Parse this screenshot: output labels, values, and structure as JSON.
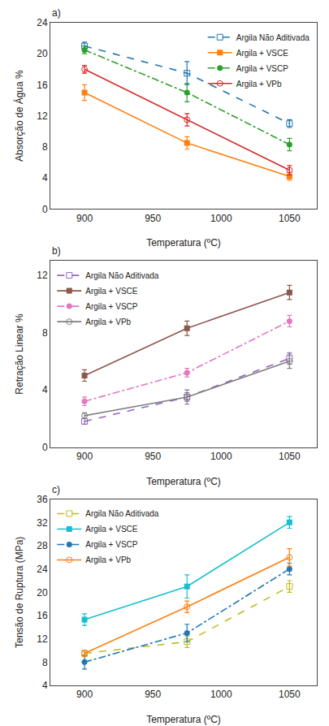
{
  "chart_data": [
    {
      "type": "line",
      "title": "a)",
      "xlabel": "Temperatura (ºC)",
      "ylabel": "Absorção de Água %",
      "x": [
        900,
        975,
        1050
      ],
      "xlim": [
        875,
        1070
      ],
      "xticks": [
        900,
        950,
        1000,
        1050
      ],
      "ylim": [
        0,
        24
      ],
      "yticks": [
        0,
        4,
        8,
        12,
        16,
        20,
        24
      ],
      "grid": false,
      "legend": "upper right",
      "series": [
        {
          "name": "Argila Não Aditivada",
          "values": [
            21.0,
            17.5,
            11.0
          ],
          "yerr": [
            0.5,
            1.5,
            0.5
          ],
          "marker": "square-open",
          "line_style": "dashed"
        },
        {
          "name": "Argila + VSCE",
          "values": [
            15.0,
            8.5,
            4.2
          ],
          "yerr": [
            1.0,
            0.8,
            0.5
          ],
          "marker": "square",
          "line_style": "solid"
        },
        {
          "name": "Argila + VSCP",
          "values": [
            20.5,
            15.0,
            8.3
          ],
          "yerr": [
            0.5,
            1.2,
            0.8
          ],
          "marker": "circle",
          "line_style": "dotted_dash"
        },
        {
          "name": "Argila + VPb",
          "values": [
            18.0,
            11.5,
            5.0
          ],
          "yerr": [
            0.5,
            0.8,
            0.6
          ],
          "marker": "circle-open",
          "line_style": "solid"
        }
      ]
    },
    {
      "type": "line",
      "title": "b)",
      "xlabel": "Temperatura (ºC)",
      "ylabel": "Retração Linear %",
      "x": [
        900,
        975,
        1050
      ],
      "xlim": [
        875,
        1070
      ],
      "xticks": [
        900,
        950,
        1000,
        1050
      ],
      "ylim": [
        0,
        13
      ],
      "yticks": [
        0,
        4,
        8,
        12
      ],
      "grid": false,
      "legend": "upper left",
      "series": [
        {
          "name": "Argila Não Aditivada",
          "values": [
            1.8,
            3.5,
            6.2
          ],
          "yerr": [
            0.2,
            0.3,
            0.4
          ],
          "marker": "square-open",
          "line_style": "dashed"
        },
        {
          "name": "Argila + VSCE",
          "values": [
            5.0,
            8.3,
            10.8
          ],
          "yerr": [
            0.4,
            0.5,
            0.5
          ],
          "marker": "square",
          "line_style": "solid"
        },
        {
          "name": "Argila + VSCP",
          "values": [
            3.2,
            5.2,
            8.8
          ],
          "yerr": [
            0.3,
            0.3,
            0.4
          ],
          "marker": "circle",
          "line_style": "dotted_dash"
        },
        {
          "name": "Argila + VPb",
          "values": [
            2.2,
            3.5,
            6.0
          ],
          "yerr": [
            0.2,
            0.5,
            0.5
          ],
          "marker": "circle-open",
          "line_style": "solid"
        }
      ]
    },
    {
      "type": "line",
      "title": "c)",
      "xlabel": "Temperatura (ºC)",
      "ylabel": "Tensão de Ruptura (MPa)",
      "x": [
        900,
        975,
        1050
      ],
      "xlim": [
        875,
        1070
      ],
      "xticks": [
        900,
        950,
        1000,
        1050
      ],
      "ylim": [
        4,
        36
      ],
      "yticks": [
        4,
        8,
        12,
        16,
        20,
        24,
        28,
        32,
        36
      ],
      "grid": false,
      "legend": "upper left",
      "series": [
        {
          "name": "Argila Não Aditivada",
          "values": [
            9.5,
            11.5,
            21.0
          ],
          "yerr": [
            0.5,
            1.0,
            1.0
          ],
          "marker": "square-open",
          "line_style": "dashed"
        },
        {
          "name": "Argila + VSCE",
          "values": [
            15.3,
            21.0,
            32.0
          ],
          "yerr": [
            1.0,
            2.0,
            1.0
          ],
          "marker": "square",
          "line_style": "solid"
        },
        {
          "name": "Argila + VSCP",
          "values": [
            8.0,
            13.0,
            24.0
          ],
          "yerr": [
            1.2,
            1.5,
            1.0
          ],
          "marker": "circle",
          "line_style": "dotted_dash"
        },
        {
          "name": "Argila + VPb",
          "values": [
            9.5,
            17.5,
            26.0
          ],
          "yerr": [
            0.5,
            1.0,
            1.5
          ],
          "marker": "circle-open",
          "line_style": "solid"
        }
      ]
    }
  ]
}
